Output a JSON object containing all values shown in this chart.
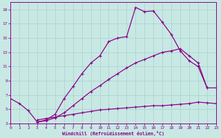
{
  "xlabel": "Windchill (Refroidissement éolien,°C)",
  "background_color": "#c8e8e4",
  "line_color": "#880088",
  "grid_color": "#a8d0cc",
  "xlim": [
    0,
    23
  ],
  "ylim": [
    3,
    20
  ],
  "xticks": [
    0,
    1,
    2,
    3,
    4,
    5,
    6,
    7,
    8,
    9,
    10,
    11,
    12,
    13,
    14,
    15,
    16,
    17,
    18,
    19,
    20,
    21,
    22,
    23
  ],
  "yticks": [
    3,
    5,
    7,
    9,
    11,
    13,
    15,
    17,
    19
  ],
  "curve1_x": [
    0,
    1,
    2,
    3,
    4,
    5,
    6,
    7,
    8,
    9,
    10,
    11,
    12,
    13,
    14,
    15,
    16,
    17,
    18,
    19,
    20,
    21,
    22
  ],
  "curve1_y": [
    6.5,
    5.8,
    4.8,
    3.2,
    3.5,
    4.3,
    6.5,
    8.2,
    10.0,
    11.5,
    12.5,
    14.5,
    15.0,
    15.2,
    19.3,
    18.7,
    18.8,
    17.2,
    15.5,
    13.2,
    11.8,
    11.0,
    8.0
  ],
  "curve2_x": [
    3,
    4,
    5,
    6,
    7,
    8,
    9,
    10,
    11,
    12,
    13,
    14,
    15,
    16,
    17,
    18,
    19,
    20,
    21,
    22,
    23
  ],
  "curve2_y": [
    3.2,
    3.4,
    3.8,
    4.5,
    5.5,
    6.5,
    7.5,
    8.3,
    9.2,
    10.0,
    10.8,
    11.5,
    12.0,
    12.5,
    13.0,
    13.2,
    13.5,
    12.5,
    11.5,
    8.0,
    8.0
  ],
  "curve3_x": [
    3,
    4,
    5,
    6,
    7,
    8,
    9,
    10,
    11,
    12,
    13,
    14,
    15,
    16,
    17,
    18,
    19,
    20,
    21,
    22,
    23
  ],
  "curve3_y": [
    3.5,
    3.7,
    3.9,
    4.1,
    4.3,
    4.5,
    4.7,
    4.9,
    5.0,
    5.1,
    5.2,
    5.3,
    5.4,
    5.5,
    5.5,
    5.6,
    5.7,
    5.8,
    6.0,
    5.9,
    5.8
  ]
}
